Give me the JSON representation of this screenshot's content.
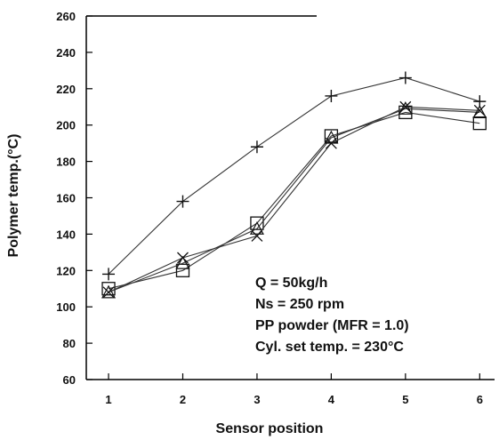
{
  "chart_data": {
    "type": "line",
    "title": "",
    "xlabel": "Sensor position",
    "ylabel": "Polymer temp.(°C)",
    "x": [
      1,
      2,
      3,
      4,
      5,
      6
    ],
    "x_ticks": [
      "1",
      "2",
      "3",
      "4",
      "5",
      "6"
    ],
    "xlim": [
      0.7,
      6.2
    ],
    "ylim": [
      60,
      260
    ],
    "y_ticks": [
      "60",
      "80",
      "100",
      "120",
      "140",
      "160",
      "180",
      "200",
      "220",
      "240",
      "260"
    ],
    "grid": false,
    "legend": "none",
    "series": [
      {
        "marker": "plus",
        "values": [
          118,
          158,
          188,
          216,
          226,
          213
        ]
      },
      {
        "marker": "square",
        "values": [
          110,
          120,
          146,
          194,
          207,
          201
        ]
      },
      {
        "marker": "triangle",
        "values": [
          108,
          124,
          143,
          193,
          209,
          207
        ]
      },
      {
        "marker": "x",
        "values": [
          108,
          127,
          139,
          190,
          210,
          208
        ]
      }
    ],
    "annotations": [
      "Q = 50kg/h",
      "Ns = 250 rpm",
      "PP powder (MFR = 1.0)",
      "Cyl. set temp. = 230°C"
    ]
  },
  "colors": {
    "axis": "#000000",
    "lines": "#333333"
  }
}
